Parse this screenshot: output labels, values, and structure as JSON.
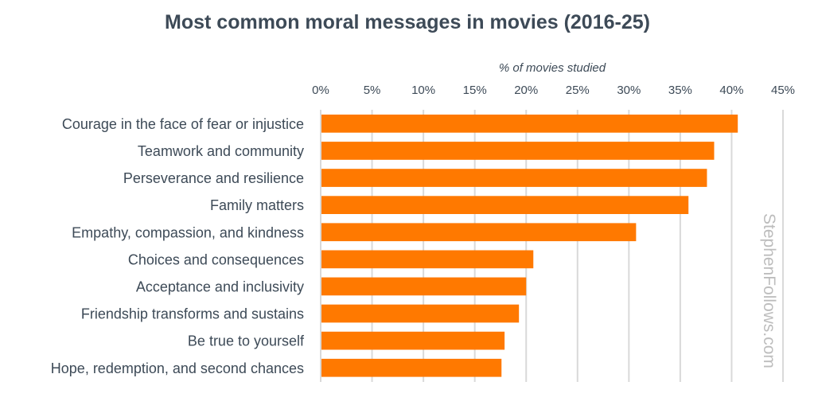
{
  "chart_data": {
    "type": "bar",
    "orientation": "horizontal",
    "title": "Most common moral messages in movies (2016-25)",
    "xlabel": "% of movies studied",
    "ylabel": "",
    "xlim": [
      0,
      45
    ],
    "x_ticks": [
      "0%",
      "5%",
      "10%",
      "15%",
      "20%",
      "25%",
      "30%",
      "35%",
      "40%",
      "45%"
    ],
    "x_axis_position": "top",
    "grid": true,
    "categories": [
      "Courage in the face of fear or injustice",
      "Teamwork and community",
      "Perseverance and resilience",
      "Family matters",
      "Empathy, compassion, and kindness",
      "Choices and consequences",
      "Acceptance and inclusivity",
      "Friendship transforms and sustains",
      "Be true to yourself",
      "Hope, redemption, and second chances"
    ],
    "values": [
      40.6,
      38.3,
      37.6,
      35.8,
      30.7,
      20.7,
      20.0,
      19.3,
      17.9,
      17.6
    ],
    "bar_color": "#ff7900",
    "grid_color": "#d9d9d9",
    "watermark": "StephenFollows.com"
  }
}
